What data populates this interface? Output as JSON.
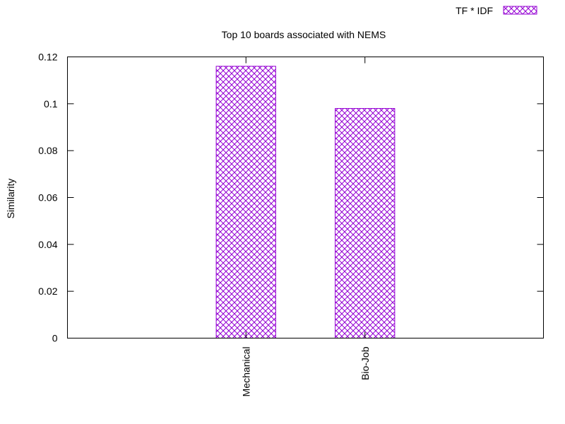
{
  "chart_data": {
    "type": "bar",
    "title": "Top 10 boards associated with NEMS",
    "xlabel": "",
    "ylabel": "Similarity",
    "categories": [
      "Mechanical",
      "Bio-Job"
    ],
    "series": [
      {
        "name": "TF * IDF",
        "values": [
          0.116,
          0.098
        ],
        "color": "#9400d3",
        "fill_pattern": "crosshatch"
      }
    ],
    "ylim": [
      0,
      0.12
    ],
    "yticks": [
      0,
      0.02,
      0.04,
      0.06,
      0.08,
      0.1,
      0.12
    ],
    "ytick_labels": [
      "0",
      "0.02",
      "0.04",
      "0.06",
      "0.08",
      "0.1",
      "0.12"
    ],
    "xlim": [
      -1.5,
      2.5
    ],
    "x_positions": [
      0,
      1
    ],
    "bar_width": 0.5,
    "grid": false,
    "legend_position": "top-right",
    "xtick_rotation": "vertical"
  }
}
